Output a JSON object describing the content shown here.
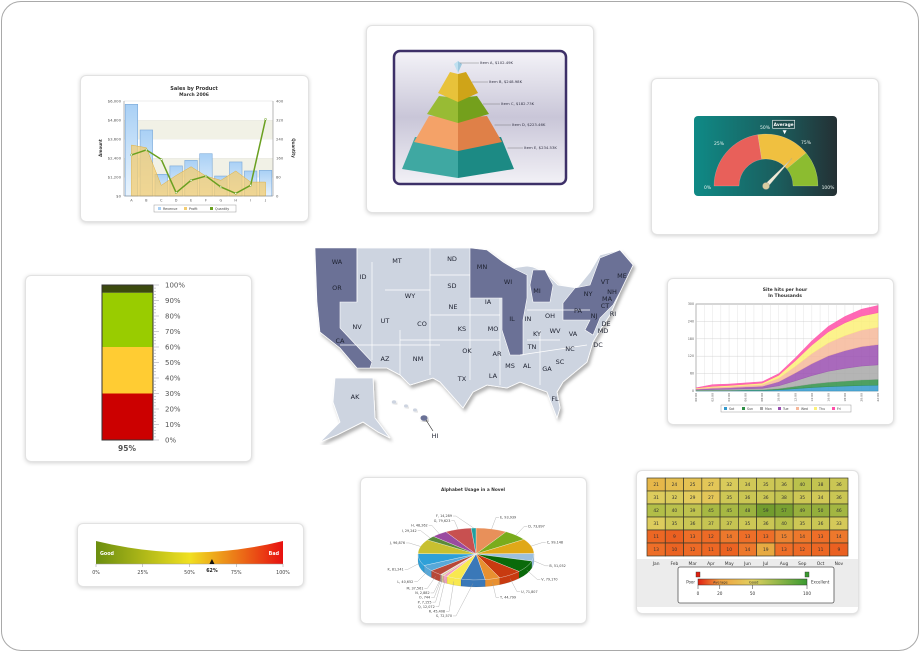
{
  "map": {
    "highlight_color": "#6b7196",
    "base_color": "#cdd4e0",
    "states": [
      {
        "code": "WA",
        "highlighted": true
      },
      {
        "code": "OR",
        "highlighted": true
      },
      {
        "code": "CA",
        "highlighted": true
      },
      {
        "code": "ID",
        "highlighted": false
      },
      {
        "code": "MT",
        "highlighted": false
      },
      {
        "code": "WY",
        "highlighted": false
      },
      {
        "code": "NV",
        "highlighted": false
      },
      {
        "code": "UT",
        "highlighted": false
      },
      {
        "code": "CO",
        "highlighted": false
      },
      {
        "code": "AZ",
        "highlighted": false
      },
      {
        "code": "NM",
        "highlighted": false
      },
      {
        "code": "ND",
        "highlighted": false
      },
      {
        "code": "SD",
        "highlighted": false
      },
      {
        "code": "NE",
        "highlighted": false
      },
      {
        "code": "KS",
        "highlighted": false
      },
      {
        "code": "OK",
        "highlighted": false
      },
      {
        "code": "TX",
        "highlighted": false
      },
      {
        "code": "MN",
        "highlighted": true
      },
      {
        "code": "IA",
        "highlighted": false
      },
      {
        "code": "MO",
        "highlighted": false
      },
      {
        "code": "AR",
        "highlighted": false
      },
      {
        "code": "LA",
        "highlighted": false
      },
      {
        "code": "WI",
        "highlighted": true
      },
      {
        "code": "IL",
        "highlighted": true
      },
      {
        "code": "MI",
        "highlighted": true
      },
      {
        "code": "IN",
        "highlighted": false
      },
      {
        "code": "OH",
        "highlighted": false
      },
      {
        "code": "KY",
        "highlighted": false
      },
      {
        "code": "TN",
        "highlighted": false
      },
      {
        "code": "MS",
        "highlighted": false
      },
      {
        "code": "AL",
        "highlighted": false
      },
      {
        "code": "GA",
        "highlighted": false
      },
      {
        "code": "FL",
        "highlighted": false
      },
      {
        "code": "SC",
        "highlighted": false
      },
      {
        "code": "NC",
        "highlighted": false
      },
      {
        "code": "VA",
        "highlighted": false
      },
      {
        "code": "WV",
        "highlighted": false
      },
      {
        "code": "PA",
        "highlighted": true
      },
      {
        "code": "NY",
        "highlighted": true
      },
      {
        "code": "VT",
        "highlighted": true
      },
      {
        "code": "NH",
        "highlighted": true
      },
      {
        "code": "ME",
        "highlighted": true
      },
      {
        "code": "MA",
        "highlighted": true
      },
      {
        "code": "CT",
        "highlighted": true
      },
      {
        "code": "RI",
        "highlighted": false
      },
      {
        "code": "NJ",
        "highlighted": true
      },
      {
        "code": "DE",
        "highlighted": false
      },
      {
        "code": "MD",
        "highlighted": false
      },
      {
        "code": "DC",
        "highlighted": false
      },
      {
        "code": "AK",
        "highlighted": false
      },
      {
        "code": "HI",
        "highlighted": true
      }
    ]
  },
  "chart_data": [
    {
      "type": "bar",
      "title": "Sales by Product",
      "subtitle": "March 2006",
      "ylabel": "Amount",
      "y2label": "Quantity",
      "categories": [
        "A",
        "B",
        "C",
        "D",
        "E",
        "F",
        "G",
        "H",
        "I",
        "J"
      ],
      "ylim": [
        0,
        6000
      ],
      "yticks": [
        "$0",
        "$1,200",
        "$2,400",
        "$3,600",
        "$4,800",
        "$6,000"
      ],
      "y2lim": [
        0,
        400
      ],
      "y2ticks": [
        "0",
        "80",
        "160",
        "240",
        "320",
        "400"
      ],
      "grid": true,
      "legend_position": "bottom",
      "series": [
        {
          "name": "Revenue",
          "render": "column",
          "color": "#a9d0f5",
          "values": [
            5790,
            4170,
            1370,
            1900,
            2250,
            2670,
            1260,
            2150,
            1580,
            1620
          ]
        },
        {
          "name": "Profit",
          "render": "area",
          "color": "#f3cc70",
          "values": [
            3220,
            3050,
            670,
            1300,
            1850,
            1260,
            990,
            1580,
            880,
            880
          ]
        },
        {
          "name": "Quantity",
          "render": "line",
          "axis": "secondary",
          "color": "#6aa020",
          "values": [
            173,
            194,
            154,
            14,
            66,
            84,
            38,
            11,
            45,
            323
          ]
        }
      ]
    },
    {
      "type": "pyramid",
      "items": [
        {
          "label": "Item A, $102.49K",
          "value": 102.49,
          "color": "#bfe0f0"
        },
        {
          "label": "Item B, $248.98K",
          "value": 248.98,
          "color": "#e8c23a"
        },
        {
          "label": "Item C, $182.73K",
          "value": 182.73,
          "color": "#98bb34"
        },
        {
          "label": "Item D, $223.46K",
          "value": 223.46,
          "color": "#f4a268"
        },
        {
          "label": "Item E, $234.53K",
          "value": 234.53,
          "color": "#3fa8a2"
        }
      ]
    },
    {
      "type": "angular-gauge",
      "ticks": [
        "0%",
        "25%",
        "50%",
        "75%",
        "100%"
      ],
      "ranges": [
        {
          "min": 0,
          "max": 45,
          "color": "#e8605a"
        },
        {
          "min": 45,
          "max": 78,
          "color": "#f0c040"
        },
        {
          "min": 78,
          "max": 100,
          "color": "#8cbc30"
        }
      ],
      "value": 74,
      "marker": {
        "label": "Average",
        "value": 61
      },
      "background": "#137a78"
    },
    {
      "type": "linear-gauge",
      "orientation": "vertical",
      "ticks": [
        "0%",
        "10%",
        "20%",
        "30%",
        "40%",
        "50%",
        "60%",
        "70%",
        "80%",
        "90%",
        "100%"
      ],
      "ranges": [
        {
          "min": 0,
          "max": 30,
          "color": "#cc0000"
        },
        {
          "min": 30,
          "max": 60,
          "color": "#ffcc33"
        },
        {
          "min": 60,
          "max": 95,
          "color": "#99cc00"
        },
        {
          "min": 95,
          "max": 100,
          "color": "#3c4a0e"
        }
      ],
      "value": 95,
      "value_label": "95%"
    },
    {
      "type": "area",
      "stacked": true,
      "title": "Site hits per hour",
      "subtitle": "In Thousands",
      "x": [
        "00:00",
        "02:00",
        "04:00",
        "06:00",
        "08:00",
        "10:00",
        "12:00",
        "14:00",
        "16:00",
        "18:00",
        "20:00",
        "22:00"
      ],
      "ylim": [
        0,
        300
      ],
      "yticks": [
        "0",
        "60",
        "120",
        "180",
        "240",
        "300"
      ],
      "grid": true,
      "legend_position": "bottom",
      "series": [
        {
          "name": "Sat",
          "color": "#3399cc",
          "values": [
            1,
            1,
            1,
            2,
            2,
            4,
            8,
            12,
            15,
            17,
            19,
            20
          ]
        },
        {
          "name": "Sun",
          "color": "#2f8f45",
          "values": [
            1,
            1,
            1,
            2,
            2,
            4,
            8,
            12,
            15,
            17,
            19,
            20
          ]
        },
        {
          "name": "Mon",
          "color": "#a8a8a8",
          "values": [
            2,
            3,
            4,
            4,
            5,
            10,
            19,
            29,
            38,
            44,
            48,
            50
          ]
        },
        {
          "name": "Tue",
          "color": "#9a4fb0",
          "values": [
            2,
            4,
            5,
            6,
            7,
            14,
            27,
            41,
            53,
            61,
            67,
            70
          ]
        },
        {
          "name": "Wed",
          "color": "#f6b89a",
          "values": [
            2,
            4,
            4,
            5,
            6,
            12,
            23,
            35,
            45,
            52,
            57,
            60
          ]
        },
        {
          "name": "Thu",
          "color": "#fbf078",
          "values": [
            2,
            3,
            4,
            4,
            5,
            10,
            19,
            29,
            38,
            44,
            48,
            50
          ]
        },
        {
          "name": "Fri",
          "color": "#ff4fa8",
          "values": [
            1,
            6,
            5,
            5,
            5,
            6,
            10,
            15,
            19,
            22,
            24,
            25
          ]
        }
      ]
    },
    {
      "type": "linear-gauge",
      "orientation": "horizontal",
      "ticks": [
        "0%",
        "25%",
        "50%",
        "75%",
        "100%"
      ],
      "start_label": "Good",
      "end_label": "Bad",
      "colors": [
        "#6b8e10",
        "#f0e020",
        "#e81010"
      ],
      "value": 62,
      "value_label": "62%"
    },
    {
      "type": "pie",
      "title": "Alphabet Usage in a Novel",
      "slices": [
        {
          "label": "E, 93,939",
          "value": 93939,
          "color": "#e8905a"
        },
        {
          "label": "D, 73,897",
          "value": 73897,
          "color": "#7aac1c"
        },
        {
          "label": "C, 99,148",
          "value": 99148,
          "color": "#e0a818"
        },
        {
          "label": "B, 51,052",
          "value": 51052,
          "color": "#9cc0e0"
        },
        {
          "label": "V, 79,170",
          "value": 79170,
          "color": "#0a6a0a"
        },
        {
          "label": "U, 71,807",
          "value": 71807,
          "color": "#c83a10"
        },
        {
          "label": "T, 44,799",
          "value": 44799,
          "color": "#e89030"
        },
        {
          "label": "S, 72,570",
          "value": 72570,
          "color": "#3a78b8"
        },
        {
          "label": "R, 45,408",
          "value": 45408,
          "color": "#f8e850"
        },
        {
          "label": "Q, 12,072",
          "value": 12072,
          "color": "#f0a0c0"
        },
        {
          "label": "P, 7,155",
          "value": 7155,
          "color": "#d8c890"
        },
        {
          "label": "O, 744",
          "value": 744,
          "color": "#a0a0a0"
        },
        {
          "label": "N, 2,882",
          "value": 2882,
          "color": "#c8c0e0"
        },
        {
          "label": "M, 37,561",
          "value": 37561,
          "color": "#b84838"
        },
        {
          "label": "L, 40,652",
          "value": 40652,
          "color": "#58a8d8"
        },
        {
          "label": "K, 81,241",
          "value": 81241,
          "color": "#2ea0d8"
        },
        {
          "label": "J, 96,876",
          "value": 96876,
          "color": "#c8c030"
        },
        {
          "label": "I, 29,242",
          "value": 29242,
          "color": "#5a8a3a"
        },
        {
          "label": "H, 48,262",
          "value": 48262,
          "color": "#9a4aa0"
        },
        {
          "label": "G, 79,623",
          "value": 79623,
          "color": "#c85050"
        },
        {
          "label": "F, 14,289",
          "value": 14289,
          "color": "#20a0a0"
        }
      ]
    },
    {
      "type": "heatmap",
      "columns": [
        "Jan",
        "Feb",
        "Mar",
        "Apr",
        "May",
        "Jun",
        "Jul",
        "Aug",
        "Sep",
        "Oct",
        "Nov"
      ],
      "values": [
        [
          21,
          24,
          25,
          27,
          32,
          34,
          35,
          36,
          40,
          38,
          36
        ],
        [
          31,
          32,
          29,
          27,
          35,
          36,
          36,
          38,
          35,
          34,
          36
        ],
        [
          42,
          40,
          39,
          45,
          45,
          48,
          59,
          57,
          49,
          50,
          46
        ],
        [
          31,
          35,
          36,
          37,
          37,
          35,
          36,
          40,
          35,
          36,
          33
        ],
        [
          11,
          9,
          13,
          12,
          14,
          13,
          13,
          15,
          14,
          13,
          14
        ],
        [
          13,
          10,
          12,
          11,
          10,
          14,
          19,
          13,
          12,
          11,
          9
        ]
      ],
      "legend": {
        "start_label": "Poor",
        "end_label": "Excellent",
        "range_labels": [
          "Average",
          "Good"
        ],
        "ticks": [
          "0",
          "20",
          "50",
          "100"
        ]
      }
    }
  ]
}
